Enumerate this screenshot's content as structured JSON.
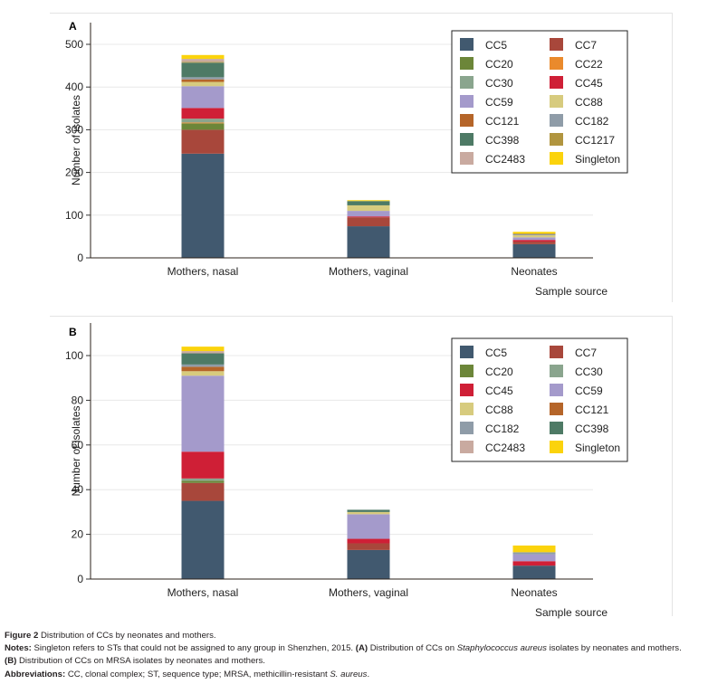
{
  "chart_data": [
    {
      "panel_label": "A",
      "type": "bar",
      "stacked": true,
      "title": "",
      "xlabel": "Sample source",
      "ylabel": "Number of isolates",
      "ylim": [
        0,
        530
      ],
      "yticks": [
        0,
        100,
        200,
        300,
        400,
        500
      ],
      "grid": true,
      "legend_position": "top-right",
      "categories": [
        "Mothers, nasal",
        "Mothers, vaginal",
        "Neonates"
      ],
      "series": [
        {
          "name": "CC5",
          "color": "#41596f",
          "values": [
            244,
            74,
            32
          ]
        },
        {
          "name": "CC7",
          "color": "#a8473b",
          "values": [
            56,
            21,
            6
          ]
        },
        {
          "name": "CC20",
          "color": "#6c8639",
          "values": [
            15,
            0,
            0
          ]
        },
        {
          "name": "CC22",
          "color": "#ea8a2c",
          "values": [
            2,
            0,
            0
          ]
        },
        {
          "name": "CC30",
          "color": "#8aa58e",
          "values": [
            9,
            0,
            0
          ]
        },
        {
          "name": "CC45",
          "color": "#cf1f36",
          "values": [
            25,
            2,
            4
          ]
        },
        {
          "name": "CC59",
          "color": "#a49acb",
          "values": [
            51,
            13,
            6
          ]
        },
        {
          "name": "CC88",
          "color": "#d7cb7e",
          "values": [
            10,
            13,
            5
          ]
        },
        {
          "name": "CC121",
          "color": "#b56529",
          "values": [
            6,
            0,
            0
          ]
        },
        {
          "name": "CC182",
          "color": "#8f9ca8",
          "values": [
            5,
            0,
            2
          ]
        },
        {
          "name": "CC398",
          "color": "#4e7a65",
          "values": [
            34,
            10,
            0
          ]
        },
        {
          "name": "CC1217",
          "color": "#b1953f",
          "values": [
            2,
            0,
            2
          ]
        },
        {
          "name": "CC2483",
          "color": "#c9aaa0",
          "values": [
            7,
            0,
            0
          ]
        },
        {
          "name": "Singleton",
          "color": "#fbd30c",
          "values": [
            9,
            2,
            4
          ]
        }
      ],
      "legend_order": [
        "CC5",
        "CC7",
        "CC20",
        "CC22",
        "CC30",
        "CC45",
        "CC59",
        "CC88",
        "CC121",
        "CC182",
        "CC398",
        "CC1217",
        "CC2483",
        "Singleton"
      ]
    },
    {
      "panel_label": "B",
      "type": "bar",
      "stacked": true,
      "title": "",
      "xlabel": "Sample source",
      "ylabel": "Number of isolates",
      "ylim": [
        0,
        111
      ],
      "yticks": [
        0,
        20,
        40,
        60,
        80,
        100
      ],
      "grid": true,
      "legend_position": "top-right",
      "categories": [
        "Mothers, nasal",
        "Mothers, vaginal",
        "Neonates"
      ],
      "series": [
        {
          "name": "CC5",
          "color": "#41596f",
          "values": [
            35,
            13,
            6
          ]
        },
        {
          "name": "CC7",
          "color": "#a8473b",
          "values": [
            8,
            3,
            0
          ]
        },
        {
          "name": "CC20",
          "color": "#6c8639",
          "values": [
            1,
            0,
            0
          ]
        },
        {
          "name": "CC30",
          "color": "#8aa58e",
          "values": [
            1,
            0,
            0
          ]
        },
        {
          "name": "CC45",
          "color": "#cf1f36",
          "values": [
            12,
            2,
            2
          ]
        },
        {
          "name": "CC59",
          "color": "#a49acb",
          "values": [
            34,
            11,
            3
          ]
        },
        {
          "name": "CC88",
          "color": "#d7cb7e",
          "values": [
            2,
            1,
            0
          ]
        },
        {
          "name": "CC121",
          "color": "#b56529",
          "values": [
            2,
            0,
            0
          ]
        },
        {
          "name": "CC182",
          "color": "#8f9ca8",
          "values": [
            1,
            0,
            1
          ]
        },
        {
          "name": "CC398",
          "color": "#4e7a65",
          "values": [
            5,
            1,
            0
          ]
        },
        {
          "name": "CC2483",
          "color": "#c9aaa0",
          "values": [
            1,
            0,
            0
          ]
        },
        {
          "name": "Singleton",
          "color": "#fbd30c",
          "values": [
            2,
            0,
            3
          ]
        }
      ],
      "legend_order": [
        "CC5",
        "CC7",
        "CC20",
        "CC30",
        "CC45",
        "CC59",
        "CC88",
        "CC121",
        "CC182",
        "CC398",
        "CC2483",
        "Singleton"
      ]
    }
  ],
  "caption": {
    "figure_label": "Figure 2",
    "figure_title": "Distribution of CCs by neonates and mothers.",
    "notes_label": "Notes:",
    "notes_text_1": "Singleton refers to STs that could not be assigned to any group in Shenzhen, 2015.",
    "notes_a_label": "(A)",
    "notes_a_text_1": "Distribution of CCs on",
    "notes_a_italic": "Staphylococcus aureus",
    "notes_a_text_2": "isolates by neonates and mothers.",
    "notes_b_label": "(B)",
    "notes_b_text": "Distribution of CCs on MRSA isolates by neonates and mothers.",
    "abbrev_label": "Abbreviations:",
    "abbrev_text": "CC, clonal complex; ST, sequence type; MRSA, methicillin-resistant",
    "abbrev_italic": "S. aureus",
    "abbrev_end": "."
  }
}
